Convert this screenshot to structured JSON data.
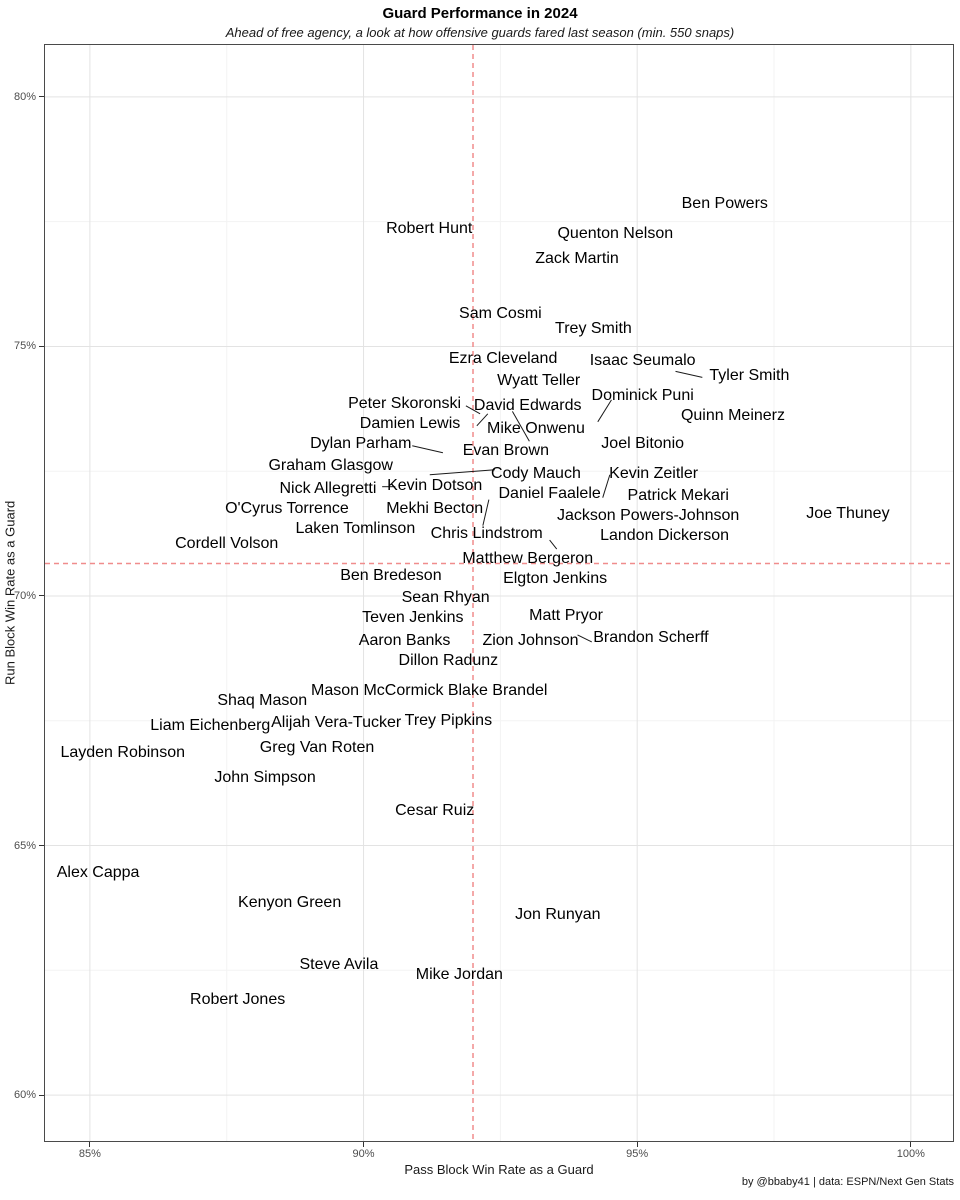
{
  "chart_data": {
    "type": "scatter",
    "title": "Guard Performance in 2024",
    "subtitle": "Ahead of free agency, a look at how offensive guards fared last season (min. 550 snaps)",
    "xlabel": "Pass Block Win Rate as a Guard",
    "ylabel": "Run Block Win Rate as a Guard",
    "caption": "by @bbaby41 | data: ESPN/Next Gen Stats",
    "units": "%",
    "xlim": [
      84.18,
      100.77
    ],
    "ylim": [
      59.08,
      81.04
    ],
    "grid": true,
    "legend": "none",
    "x_ticks": [
      {
        "value": 85,
        "label": "85%"
      },
      {
        "value": 90,
        "label": "90%"
      },
      {
        "value": 95,
        "label": "95%"
      },
      {
        "value": 100,
        "label": "100%"
      }
    ],
    "y_ticks": [
      {
        "value": 60,
        "label": "60%"
      },
      {
        "value": 65,
        "label": "65%"
      },
      {
        "value": 70,
        "label": "70%"
      },
      {
        "value": 75,
        "label": "75%"
      },
      {
        "value": 80,
        "label": "80%"
      }
    ],
    "x_minor_gridlines": [
      87.5,
      92.5,
      97.5
    ],
    "y_minor_gridlines": [
      62.5,
      67.5,
      72.5,
      77.5
    ],
    "crosshair": {
      "x": 92.0,
      "y": 70.65
    },
    "colors": {
      "crosshair": "#f08c8c",
      "grid_major": "#e3e3e3",
      "grid_minor": "#f3f3f3",
      "panel_border": "#4a4a4a",
      "segment": "#1a1a1a",
      "label_text": "#000000",
      "tick_text": "#4d4d4d"
    },
    "points": [
      {
        "name": "Ben Powers",
        "x": 96.6,
        "y": 77.85
      },
      {
        "name": "Robert Hunt",
        "x": 91.2,
        "y": 77.35
      },
      {
        "name": "Quenton Nelson",
        "x": 94.6,
        "y": 77.25
      },
      {
        "name": "Zack Martin",
        "x": 93.9,
        "y": 76.75
      },
      {
        "name": "Sam Cosmi",
        "x": 92.5,
        "y": 75.65
      },
      {
        "name": "Trey Smith",
        "x": 94.2,
        "y": 75.35
      },
      {
        "name": "Ezra Cleveland",
        "x": 92.55,
        "y": 74.75
      },
      {
        "name": "Isaac Seumalo",
        "x": 95.1,
        "y": 74.7
      },
      {
        "name": "Tyler Smith",
        "x": 97.05,
        "y": 74.4
      },
      {
        "name": "Wyatt Teller",
        "x": 93.2,
        "y": 74.3
      },
      {
        "name": "Peter Skoronski",
        "x": 90.75,
        "y": 73.85
      },
      {
        "name": "David Edwards",
        "x": 93.0,
        "y": 73.8
      },
      {
        "name": "Dominick Puni",
        "x": 95.1,
        "y": 74.0
      },
      {
        "name": "Damien Lewis",
        "x": 90.85,
        "y": 73.45
      },
      {
        "name": "Mike Onwenu",
        "x": 93.15,
        "y": 73.35
      },
      {
        "name": "Quinn Meinerz",
        "x": 96.75,
        "y": 73.6
      },
      {
        "name": "Dylan Parham",
        "x": 89.95,
        "y": 73.05
      },
      {
        "name": "Evan Brown",
        "x": 92.6,
        "y": 72.9
      },
      {
        "name": "Joel Bitonio",
        "x": 95.1,
        "y": 73.05
      },
      {
        "name": "Graham Glasgow",
        "x": 89.4,
        "y": 72.6
      },
      {
        "name": "Cody Mauch",
        "x": 93.15,
        "y": 72.45
      },
      {
        "name": "Kevin Zeitler",
        "x": 95.3,
        "y": 72.45
      },
      {
        "name": "Nick Allegretti",
        "x": 89.35,
        "y": 72.15
      },
      {
        "name": "Kevin Dotson",
        "x": 91.3,
        "y": 72.2
      },
      {
        "name": "Daniel Faalele",
        "x": 93.4,
        "y": 72.05
      },
      {
        "name": "Patrick Mekari",
        "x": 95.75,
        "y": 72.0
      },
      {
        "name": "O'Cyrus Torrence",
        "x": 88.6,
        "y": 71.75
      },
      {
        "name": "Mekhi Becton",
        "x": 91.3,
        "y": 71.75
      },
      {
        "name": "Jackson Powers-Johnson",
        "x": 95.2,
        "y": 71.6
      },
      {
        "name": "Laken Tomlinson",
        "x": 89.85,
        "y": 71.35
      },
      {
        "name": "Chris Lindstrom",
        "x": 92.25,
        "y": 71.25
      },
      {
        "name": "Landon Dickerson",
        "x": 95.5,
        "y": 71.2
      },
      {
        "name": "Cordell Volson",
        "x": 87.5,
        "y": 71.05
      },
      {
        "name": "Joe Thuney",
        "x": 98.85,
        "y": 71.65
      },
      {
        "name": "Matthew Bergeron",
        "x": 93.0,
        "y": 70.75
      },
      {
        "name": "Ben Bredeson",
        "x": 90.5,
        "y": 70.4
      },
      {
        "name": "Elgton Jenkins",
        "x": 93.5,
        "y": 70.35
      },
      {
        "name": "Sean Rhyan",
        "x": 91.5,
        "y": 69.95
      },
      {
        "name": "Teven Jenkins",
        "x": 90.9,
        "y": 69.55
      },
      {
        "name": "Matt Pryor",
        "x": 93.7,
        "y": 69.6
      },
      {
        "name": "Aaron Banks",
        "x": 90.75,
        "y": 69.1
      },
      {
        "name": "Zion Johnson",
        "x": 93.05,
        "y": 69.1
      },
      {
        "name": "Brandon Scherff",
        "x": 95.25,
        "y": 69.15
      },
      {
        "name": "Dillon Radunz",
        "x": 91.55,
        "y": 68.7
      },
      {
        "name": "Shaq Mason",
        "x": 88.15,
        "y": 67.9
      },
      {
        "name": "Mason McCormick",
        "x": 90.25,
        "y": 68.1
      },
      {
        "name": "Blake Brandel",
        "x": 92.45,
        "y": 68.1
      },
      {
        "name": "Liam Eichenberg",
        "x": 87.2,
        "y": 67.4
      },
      {
        "name": "Alijah Vera-Tucker",
        "x": 89.5,
        "y": 67.45
      },
      {
        "name": "Trey Pipkins",
        "x": 91.55,
        "y": 67.5
      },
      {
        "name": "Layden Robinson",
        "x": 85.6,
        "y": 66.85
      },
      {
        "name": "Greg Van Roten",
        "x": 89.15,
        "y": 66.95
      },
      {
        "name": "John Simpson",
        "x": 88.2,
        "y": 66.35
      },
      {
        "name": "Cesar Ruiz",
        "x": 91.3,
        "y": 65.7
      },
      {
        "name": "Alex Cappa",
        "x": 85.15,
        "y": 64.45
      },
      {
        "name": "Kenyon Green",
        "x": 88.65,
        "y": 63.85
      },
      {
        "name": "Jon Runyan",
        "x": 93.55,
        "y": 63.6
      },
      {
        "name": "Steve Avila",
        "x": 89.55,
        "y": 62.6
      },
      {
        "name": "Mike Jordan",
        "x": 91.75,
        "y": 62.4
      },
      {
        "name": "Robert Jones",
        "x": 87.7,
        "y": 61.9
      }
    ],
    "label_connector_segments": [
      {
        "x1": 95.7,
        "y1": 74.5,
        "x2": 96.19,
        "y2": 74.38
      },
      {
        "x1": 91.87,
        "y1": 73.81,
        "x2": 92.13,
        "y2": 73.65
      },
      {
        "x1": 94.28,
        "y1": 73.49,
        "x2": 94.53,
        "y2": 73.93
      },
      {
        "x1": 92.07,
        "y1": 73.41,
        "x2": 92.27,
        "y2": 73.65
      },
      {
        "x1": 92.72,
        "y1": 73.7,
        "x2": 93.03,
        "y2": 73.1
      },
      {
        "x1": 90.89,
        "y1": 73.01,
        "x2": 91.45,
        "y2": 72.87
      },
      {
        "x1": 91.21,
        "y1": 72.43,
        "x2": 92.4,
        "y2": 72.53
      },
      {
        "x1": 90.34,
        "y1": 72.19,
        "x2": 90.58,
        "y2": 72.19
      },
      {
        "x1": 94.37,
        "y1": 71.97,
        "x2": 94.5,
        "y2": 72.43
      },
      {
        "x1": 92.29,
        "y1": 71.93,
        "x2": 92.18,
        "y2": 71.41
      },
      {
        "x1": 93.4,
        "y1": 71.12,
        "x2": 93.53,
        "y2": 70.94
      },
      {
        "x1": 93.91,
        "y1": 69.22,
        "x2": 94.17,
        "y2": 69.08
      }
    ]
  }
}
